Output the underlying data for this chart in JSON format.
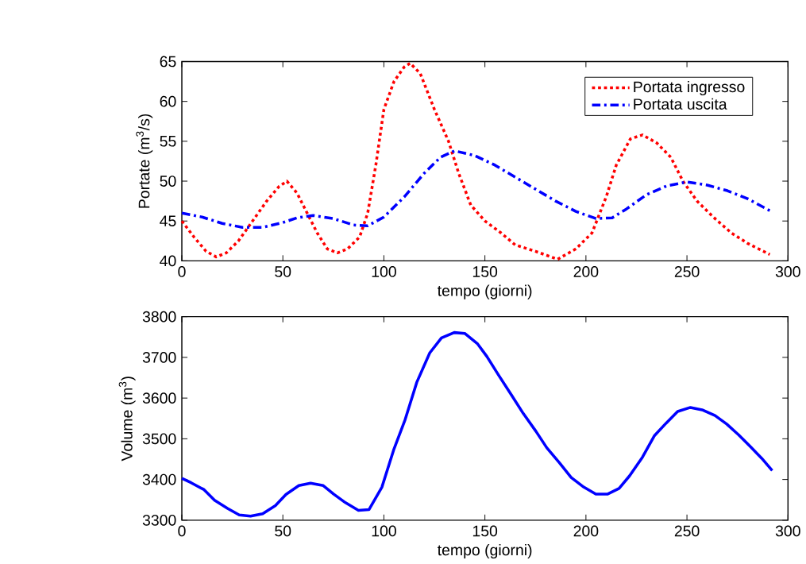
{
  "chart_data": [
    {
      "type": "line",
      "xlabel": "tempo (giorni)",
      "ylabel": "Portate (m$^{3}$/s)",
      "xlim": [
        0,
        300
      ],
      "xticks": [
        0,
        50,
        100,
        150,
        200,
        250,
        300
      ],
      "ylim": [
        40,
        65
      ],
      "yticks": [
        40,
        45,
        50,
        55,
        60,
        65
      ],
      "legend": "top right",
      "series": [
        {
          "name": "Portata ingresso",
          "color": "#ff0000",
          "line_style": "dotted",
          "x": [
            0,
            6,
            12,
            17,
            22,
            28,
            35,
            42,
            48,
            52,
            57,
            62,
            67,
            72,
            77,
            82,
            88,
            92,
            96,
            100,
            105,
            110,
            113,
            118,
            125,
            132,
            137,
            143,
            150,
            158,
            165,
            175,
            186,
            195,
            203,
            210,
            215,
            222,
            228,
            235,
            242,
            248,
            255,
            263,
            272,
            280,
            291
          ],
          "values": [
            45,
            43,
            41.2,
            40.5,
            41,
            42.5,
            45,
            47.5,
            49.3,
            50,
            48.5,
            46,
            43.5,
            41.5,
            41,
            41.5,
            43,
            46,
            52,
            59,
            62.5,
            64.3,
            64.8,
            63.5,
            59,
            55,
            51,
            47,
            45,
            43.5,
            42,
            41.2,
            40.2,
            41.5,
            43.5,
            48,
            52,
            55.3,
            55.8,
            54.8,
            53,
            50,
            47.5,
            45.5,
            43.5,
            42.2,
            40.8
          ]
        },
        {
          "name": "Portata uscita",
          "color": "#0000ff",
          "line_style": "dashdot",
          "x": [
            0,
            10,
            20,
            30,
            40,
            50,
            57,
            65,
            75,
            85,
            92,
            100,
            110,
            120,
            128,
            135,
            145,
            155,
            165,
            175,
            185,
            195,
            205,
            213,
            220,
            230,
            240,
            250,
            260,
            270,
            280,
            291
          ],
          "values": [
            46,
            45.5,
            44.7,
            44.2,
            44.2,
            44.8,
            45.4,
            45.7,
            45.3,
            44.5,
            44.4,
            45.5,
            48,
            51,
            53,
            53.8,
            53.2,
            52,
            50.5,
            49,
            47.5,
            46.2,
            45.3,
            45.4,
            46.5,
            48.3,
            49.4,
            49.9,
            49.5,
            48.8,
            47.8,
            46.3
          ]
        }
      ]
    },
    {
      "type": "line",
      "xlabel": "tempo (giorni)",
      "ylabel": "Volume (m$^{3}$)",
      "xlim": [
        0,
        300
      ],
      "xticks": [
        0,
        50,
        100,
        150,
        200,
        250,
        300
      ],
      "ylim": [
        3300,
        3800
      ],
      "yticks": [
        3300,
        3400,
        3500,
        3600,
        3700,
        3800
      ],
      "legend": false,
      "series": [
        {
          "color": "#0000ff",
          "line_style": "solid",
          "x": [
            0,
            4.6,
            11,
            16.2,
            22.6,
            28.4,
            34,
            40,
            46.3,
            51.5,
            57.9,
            63.7,
            70,
            75.2,
            81,
            87.4,
            92.6,
            99,
            104.8,
            110.5,
            116.3,
            122.7,
            128.5,
            134.8,
            140,
            146.4,
            151,
            156.8,
            163.2,
            169,
            175.3,
            180.6,
            186.9,
            192.7,
            199,
            204.9,
            210.6,
            216.4,
            221.6,
            228,
            233.8,
            239.6,
            245.4,
            251.7,
            257.5,
            263.9,
            269.7,
            275.5,
            281.3,
            287,
            292.2
          ],
          "values": [
            3403,
            3392,
            3375,
            3349,
            3329,
            3313,
            3310,
            3316,
            3336,
            3363,
            3385,
            3391,
            3385,
            3364,
            3343,
            3324,
            3326,
            3381,
            3472,
            3547,
            3639,
            3711,
            3748,
            3761,
            3759,
            3733,
            3702,
            3656,
            3607,
            3562,
            3518,
            3478,
            3441,
            3405,
            3381,
            3364,
            3364,
            3378,
            3409,
            3455,
            3507,
            3538,
            3567,
            3577,
            3571,
            3557,
            3536,
            3510,
            3481,
            3452,
            3422
          ]
        }
      ]
    }
  ]
}
